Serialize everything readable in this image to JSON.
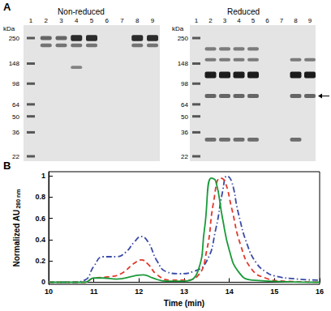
{
  "panel_a": {
    "label": "A",
    "gels": [
      {
        "title": "Non-reduced",
        "unit": "kDa",
        "lanes": [
          1,
          2,
          3,
          4,
          5,
          6,
          7,
          8,
          9
        ],
        "markers": [
          250,
          148,
          98,
          64,
          50,
          36,
          22
        ],
        "bands": [
          {
            "lanes": [
              2,
              3
            ],
            "kda": 250,
            "intensity": 0.5
          },
          {
            "lanes": [
              4,
              5,
              8,
              9
            ],
            "kda": 250,
            "intensity": 0.9
          },
          {
            "lanes": [
              2,
              3,
              4,
              5,
              8,
              9
            ],
            "kda": 215,
            "intensity": 0.4
          },
          {
            "lanes": [
              4
            ],
            "kda": 137,
            "intensity": 0.3
          }
        ]
      },
      {
        "title": "Reduced",
        "unit": "kDa",
        "lanes": [
          1,
          2,
          3,
          4,
          5,
          6,
          7,
          8,
          9
        ],
        "markers": [
          250,
          148,
          98,
          64,
          50,
          36,
          22
        ],
        "bands": [
          {
            "lanes": [
              2,
              3,
              4,
              5
            ],
            "kda": 200,
            "intensity": 0.35
          },
          {
            "lanes": [
              2,
              3,
              4,
              5,
              8,
              9
            ],
            "kda": 160,
            "intensity": 0.35
          },
          {
            "lanes": [
              2,
              3,
              4,
              5,
              8,
              9
            ],
            "kda": 117,
            "intensity": 1
          },
          {
            "lanes": [
              2,
              3,
              4,
              5,
              8,
              9
            ],
            "kda": 76,
            "intensity": 0.5
          },
          {
            "lanes": [
              2,
              3,
              4,
              5,
              8
            ],
            "kda": 31,
            "intensity": 0.45
          }
        ],
        "arrow_kda": 76
      }
    ]
  },
  "chart_data": {
    "label": "B",
    "type": "line",
    "xlabel": "Time (min)",
    "ylabel": "Normalized AU",
    "ylabel_sub": "280 nm",
    "xlim": [
      10,
      16
    ],
    "xticks": [
      10,
      11,
      12,
      13,
      14,
      15,
      16
    ],
    "ylim": [
      -0.02,
      1.04
    ],
    "yticks": [
      0,
      0.2,
      0.4,
      0.6,
      0.8,
      1
    ],
    "grid": false,
    "series": [
      {
        "color": "#3a4aa8",
        "line_style": "dashdot",
        "x": [
          10,
          10.5,
          10.8,
          11,
          11.2,
          11.5,
          11.7,
          11.9,
          12.05,
          12.2,
          12.4,
          12.6,
          12.9,
          13.2,
          13.5,
          13.7,
          13.85,
          13.95,
          14.05,
          14.2,
          14.4,
          14.6,
          14.8,
          15,
          15.5,
          16
        ],
        "values": [
          0,
          0,
          0.02,
          0.15,
          0.24,
          0.24,
          0.28,
          0.38,
          0.43,
          0.38,
          0.2,
          0.1,
          0.08,
          0.1,
          0.2,
          0.5,
          0.85,
          1.0,
          0.95,
          0.65,
          0.35,
          0.18,
          0.1,
          0.06,
          0.03,
          0.02
        ]
      },
      {
        "color": "#e0392b",
        "line_style": "dashed",
        "x": [
          10,
          10.8,
          11,
          11.3,
          11.6,
          11.9,
          12.05,
          12.2,
          12.4,
          12.7,
          13,
          13.3,
          13.5,
          13.65,
          13.8,
          13.9,
          14.05,
          14.25,
          14.5,
          14.8,
          15.2,
          16
        ],
        "values": [
          0,
          0,
          0.04,
          0.05,
          0.08,
          0.18,
          0.21,
          0.17,
          0.07,
          0.02,
          0.02,
          0.06,
          0.3,
          0.75,
          0.98,
          0.95,
          0.7,
          0.35,
          0.12,
          0.04,
          0.01,
          0
        ]
      },
      {
        "color": "#1a9a3a",
        "line_style": "solid",
        "x": [
          10,
          10.8,
          11,
          11.2,
          11.5,
          11.9,
          12.1,
          12.3,
          12.6,
          13,
          13.3,
          13.45,
          13.6,
          13.7,
          13.85,
          14.0,
          14.2,
          14.5,
          16
        ],
        "values": [
          0,
          0,
          0.04,
          0.04,
          0.03,
          0.06,
          0.07,
          0.04,
          0.01,
          0.01,
          0.1,
          0.5,
          0.98,
          0.95,
          0.6,
          0.3,
          0.1,
          0.02,
          0
        ]
      }
    ]
  }
}
